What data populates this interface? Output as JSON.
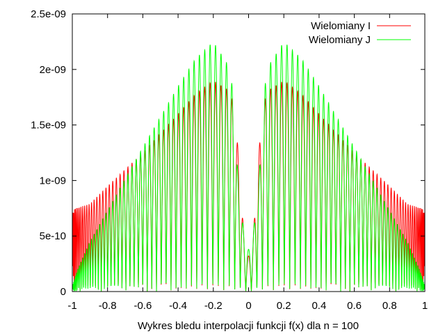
{
  "chart_data": {
    "type": "line",
    "title": "",
    "xlabel": "Wykres bledu interpolacji funkcji f(x) dla n = 100",
    "ylabel": "",
    "xlim": [
      -1,
      1
    ],
    "ylim": [
      0,
      2.5e-09
    ],
    "grid": false,
    "legend_position": "top-right",
    "x_ticks": [
      -1,
      -0.8,
      -0.6,
      -0.4,
      -0.2,
      0,
      0.2,
      0.4,
      0.6,
      0.8,
      1
    ],
    "x_tick_labels": [
      "-1",
      "-0.8",
      "-0.6",
      "-0.4",
      "-0.2",
      "0",
      "0.2",
      "0.4",
      "0.6",
      "0.8",
      "1"
    ],
    "y_ticks": [
      0,
      5e-10,
      1e-09,
      1.5e-09,
      2e-09,
      2.5e-09
    ],
    "y_tick_labels": [
      "0",
      "5e-10",
      "1e-09",
      "1.5e-09",
      "2e-09",
      "2.5e-09"
    ],
    "series": [
      {
        "name": "Wielomiany I",
        "color": "#ff0000",
        "oscillations": 100,
        "envelope": {
          "x": [
            -1,
            -0.9,
            -0.8,
            -0.6,
            -0.4,
            -0.3,
            -0.2,
            -0.1,
            -0.06,
            -0.02,
            0,
            0.02,
            0.06,
            0.1,
            0.2,
            0.3,
            0.4,
            0.6,
            0.8,
            0.9,
            1
          ],
          "y": [
            7.4e-10,
            7.9e-10,
            9.5e-10,
            1.25e-09,
            1.6e-09,
            1.78e-09,
            1.9e-09,
            1.8e-09,
            1.3e-09,
            3.5e-10,
            3.2e-10,
            3.5e-10,
            1.3e-09,
            1.8e-09,
            1.9e-09,
            1.78e-09,
            1.6e-09,
            1.25e-09,
            9.5e-10,
            7.9e-10,
            7.4e-10
          ]
        }
      },
      {
        "name": "Wielomiany J",
        "color": "#00ff00",
        "oscillations": 100,
        "envelope": {
          "x": [
            -1,
            -0.97,
            -0.9,
            -0.8,
            -0.6,
            -0.4,
            -0.3,
            -0.2,
            -0.1,
            -0.06,
            -0.02,
            0,
            0.02,
            0.06,
            0.1,
            0.2,
            0.3,
            0.4,
            0.6,
            0.8,
            0.9,
            0.97,
            1
          ],
          "y": [
            5e-11,
            2e-10,
            4.5e-10,
            7.3e-10,
            1.3e-09,
            1.85e-09,
            2.1e-09,
            2.25e-09,
            2e-09,
            1.05e-09,
            4.2e-10,
            3.8e-10,
            4.2e-10,
            1.05e-09,
            2e-09,
            2.25e-09,
            2.1e-09,
            1.85e-09,
            1.3e-09,
            7.3e-10,
            4.5e-10,
            2e-10,
            5e-11
          ]
        }
      }
    ]
  }
}
